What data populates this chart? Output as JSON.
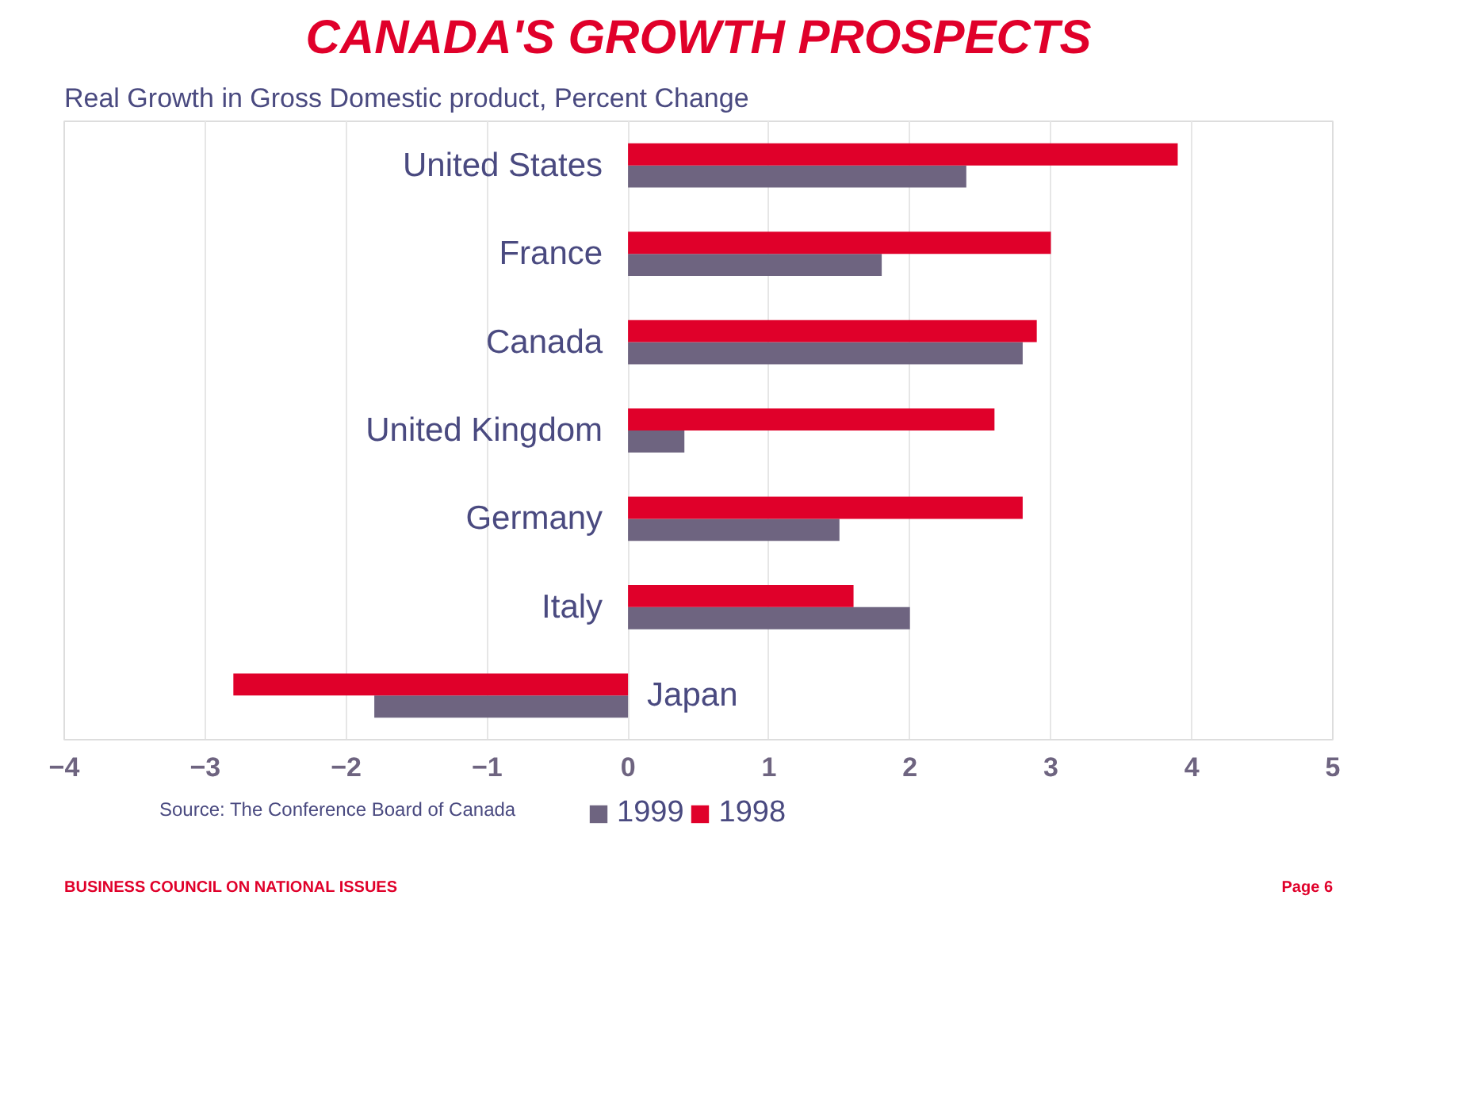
{
  "chart_data": {
    "type": "bar",
    "orientation": "horizontal",
    "title": "CANADA'S GROWTH PROSPECTS",
    "subtitle": "Real Growth in Gross Domestic product, Percent Change",
    "categories": [
      "United States",
      "France",
      "Canada",
      "United Kingdom",
      "Germany",
      "Italy",
      "Japan"
    ],
    "series": [
      {
        "name": "1999",
        "color": "#6e6480",
        "values": [
          2.4,
          1.8,
          2.8,
          0.4,
          1.5,
          2.0,
          -1.8
        ]
      },
      {
        "name": "1998",
        "color": "#e0002a",
        "values": [
          3.9,
          3.0,
          2.9,
          2.6,
          2.8,
          1.6,
          -2.8
        ]
      }
    ],
    "xlim": [
      -4,
      5
    ],
    "xticks": [
      -4,
      -3,
      -2,
      -1,
      0,
      1,
      2,
      3,
      4,
      5
    ],
    "grid": "x",
    "legend": "bottom",
    "annotations": [
      "Source: The Conference Board of Canada",
      "BUSINESS COUNCIL ON NATIONAL ISSUES",
      "Page 6"
    ]
  }
}
